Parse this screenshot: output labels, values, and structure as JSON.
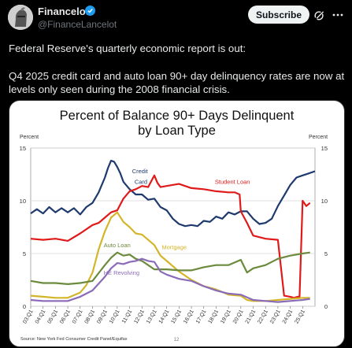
{
  "post": {
    "display_name": "Financelot",
    "handle": "@FinanceLancelot",
    "subscribe_label": "Subscribe",
    "text_line1": "Federal Reserve's quarterly economic report is out:",
    "text_line2": "Q4 2025 credit card and auto loan 90+ day delinquency rates are now at levels only seen during the 2008 financial crisis.",
    "icons": [
      "avatar-knight",
      "verified-badge",
      "grok-icon",
      "more-icon"
    ],
    "accent": "#1d9bf0"
  },
  "chart_data": {
    "type": "line",
    "title_line1": "Percent of Balance 90+ Days Delinquent",
    "title_line2": "by Loan Type",
    "ylabel_left": "Percent",
    "ylabel_right": "Percent",
    "ylim": [
      0,
      15
    ],
    "yticks": [
      "0",
      "5",
      "10",
      "15"
    ],
    "xlim": [
      2003.0,
      2026.0
    ],
    "xticks": [
      "03:Q1",
      "04:Q1",
      "05:Q1",
      "06:Q1",
      "07:Q1",
      "08:Q1",
      "09:Q1",
      "10:Q1",
      "11:Q1",
      "12:Q1",
      "13:Q1",
      "14:Q1",
      "15:Q1",
      "16:Q1",
      "17:Q1",
      "18:Q1",
      "19:Q1",
      "20:Q1",
      "21:Q1",
      "22:Q1",
      "23:Q1",
      "24:Q1",
      "25:Q1"
    ],
    "source": "Source: New York Fed Consumer Credit Panel/Equifax",
    "page_number": "12",
    "grid": true,
    "series": [
      {
        "name": "Credit Card",
        "label": [
          "Credit",
          "Card"
        ],
        "color": "#1f3b6e",
        "x": [
          2003,
          2003.5,
          2004,
          2004.5,
          2005,
          2005.5,
          2006,
          2006.5,
          2007,
          2007.5,
          2008,
          2008.5,
          2009,
          2009.25,
          2009.5,
          2009.75,
          2010,
          2010.25,
          2010.5,
          2011,
          2011.5,
          2012,
          2012.5,
          2013,
          2013.5,
          2014,
          2014.5,
          2015,
          2015.5,
          2016,
          2016.5,
          2017,
          2017.5,
          2018,
          2018.5,
          2019,
          2019.5,
          2020,
          2020.5,
          2021,
          2021.5,
          2022,
          2022.5,
          2023,
          2023.5,
          2024,
          2024.5,
          2025,
          2025.5,
          2026
        ],
        "y": [
          8.8,
          9.2,
          8.8,
          9.4,
          8.9,
          9.3,
          8.9,
          9.3,
          8.7,
          9.4,
          9.8,
          10.8,
          12.2,
          13.1,
          13.8,
          13.7,
          13.2,
          12.6,
          11.8,
          11.1,
          10.6,
          10.6,
          10.1,
          10.2,
          9.4,
          9.1,
          8.3,
          7.8,
          7.6,
          7.7,
          7.6,
          8.1,
          8.0,
          8.5,
          8.3,
          8.9,
          8.7,
          9.0,
          9.0,
          8.3,
          7.8,
          7.9,
          8.3,
          9.5,
          10.5,
          11.5,
          12.2,
          12.4,
          12.6,
          12.8
        ]
      },
      {
        "name": "Student Loan",
        "label": [
          "Student Loan"
        ],
        "color": "#e01a1a",
        "x": [
          2003,
          2004,
          2005,
          2006,
          2007,
          2008,
          2008.5,
          2009,
          2009.5,
          2010,
          2010.5,
          2011,
          2011.5,
          2012,
          2012.5,
          2013,
          2013.25,
          2013.5,
          2014,
          2015,
          2016,
          2017,
          2018,
          2019,
          2019.5,
          2019.9,
          2020.0,
          2020.5,
          2021,
          2022,
          2023,
          2023.5,
          2024,
          2024.3,
          2024.6,
          2024.75,
          2025,
          2025.3,
          2025.6
        ],
        "y": [
          6.4,
          6.3,
          6.4,
          6.2,
          6.9,
          7.7,
          7.9,
          8.4,
          8.9,
          9.1,
          10.2,
          10.9,
          11.1,
          11.4,
          11.3,
          12.4,
          11.7,
          11.3,
          11.4,
          11.6,
          11.2,
          11.1,
          10.9,
          10.8,
          10.8,
          10.6,
          9.0,
          7.9,
          6.7,
          6.4,
          6.3,
          1.0,
          0.9,
          0.8,
          0.9,
          0.9,
          10.0,
          9.5,
          9.8
        ]
      },
      {
        "name": "Mortgage",
        "label": [
          "Mortgage"
        ],
        "color": "#d4b52a",
        "x": [
          2003,
          2004,
          2005,
          2006,
          2007,
          2007.5,
          2008,
          2008.5,
          2009,
          2009.5,
          2010,
          2010.5,
          2011,
          2011.5,
          2012,
          2012.5,
          2013,
          2013.5,
          2014,
          2015,
          2016,
          2017,
          2018,
          2019,
          2020,
          2020.5,
          2021,
          2022,
          2023,
          2024,
          2025,
          2025.6
        ],
        "y": [
          1.0,
          0.9,
          0.8,
          0.8,
          1.3,
          2.0,
          3.2,
          5.4,
          7.1,
          8.4,
          8.9,
          8.0,
          7.5,
          6.9,
          6.8,
          6.3,
          5.8,
          4.8,
          4.3,
          3.3,
          2.5,
          1.9,
          1.6,
          1.1,
          1.0,
          0.6,
          0.5,
          0.5,
          0.6,
          0.7,
          0.8,
          0.8
        ]
      },
      {
        "name": "Auto Loan",
        "label": [
          "Auto Loan"
        ],
        "color": "#6b8a3c",
        "x": [
          2003,
          2004,
          2005,
          2006,
          2007,
          2008,
          2009,
          2009.5,
          2010,
          2010.5,
          2011,
          2011.5,
          2012,
          2012.5,
          2013,
          2014,
          2015,
          2016,
          2017,
          2018,
          2019,
          2020,
          2020.5,
          2021,
          2022,
          2023,
          2024,
          2025,
          2025.6
        ],
        "y": [
          2.4,
          2.2,
          2.2,
          2.1,
          2.2,
          2.4,
          3.9,
          4.6,
          5.1,
          4.8,
          4.9,
          4.5,
          4.3,
          3.9,
          3.5,
          3.5,
          3.4,
          3.4,
          3.7,
          3.9,
          3.9,
          4.4,
          3.2,
          3.6,
          3.9,
          4.5,
          4.8,
          5.0,
          5.1
        ]
      },
      {
        "name": "HE Revolving",
        "label": [
          "HE Revolving"
        ],
        "color": "#8a6bb8",
        "x": [
          2003,
          2004,
          2005,
          2006,
          2007,
          2008,
          2009,
          2009.5,
          2010,
          2010.5,
          2011,
          2011.5,
          2012,
          2012.5,
          2013,
          2013.5,
          2014,
          2015,
          2016,
          2017,
          2018,
          2019,
          2020,
          2021,
          2022,
          2023,
          2024,
          2025,
          2025.6
        ],
        "y": [
          0.6,
          0.5,
          0.5,
          0.5,
          0.9,
          1.5,
          2.8,
          3.6,
          4.1,
          4.0,
          4.2,
          4.3,
          4.5,
          4.3,
          4.2,
          3.3,
          3.0,
          2.6,
          2.4,
          1.9,
          1.5,
          1.2,
          1.1,
          0.6,
          0.5,
          0.4,
          0.5,
          0.6,
          0.7
        ]
      }
    ]
  }
}
